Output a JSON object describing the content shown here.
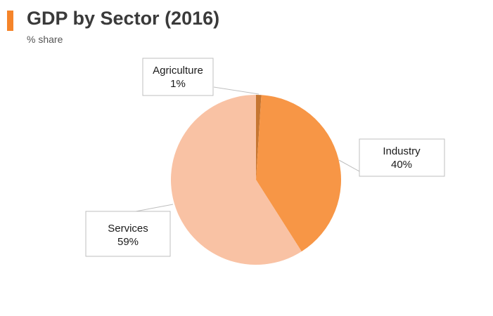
{
  "header": {
    "title": "GDP by Sector (2016)",
    "subtitle": "% share",
    "accent_color": "#f5842a"
  },
  "chart_data": {
    "type": "pie",
    "title": "GDP by Sector (2016)",
    "subtitle": "% share",
    "slices": [
      {
        "label": "Agriculture",
        "value": 1,
        "value_label": "1%",
        "color": "#c67632"
      },
      {
        "label": "Industry",
        "value": 40,
        "value_label": "40%",
        "color": "#f79646"
      },
      {
        "label": "Services",
        "value": 59,
        "value_label": "59%",
        "color": "#f9c2a4"
      }
    ],
    "start_angle": "12 o'clock",
    "direction": "clockwise",
    "labels": "callouts with leader lines"
  }
}
